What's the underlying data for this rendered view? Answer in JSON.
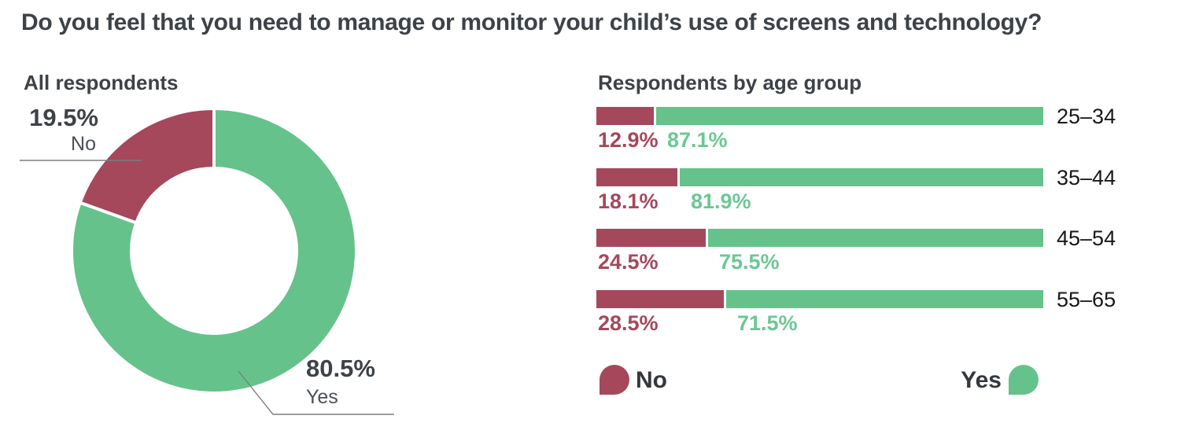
{
  "title": "Do you feel that you need to manage or monitor your child’s use of screens and technology?",
  "colors": {
    "no": "#a5485c",
    "yes": "#65c28b",
    "yes_text": "#6cc794",
    "heading_text": "#3d4247",
    "category_text": "#4b5055",
    "age_text": "#17181a",
    "legend_text": "#33383c",
    "leader_line": "#7d7d7d"
  },
  "donut_panel": {
    "heading": "All respondents",
    "no_value_label": "19.5%",
    "no_label": "No",
    "yes_value_label": "80.5%",
    "yes_label": "Yes"
  },
  "bars_panel": {
    "heading": "Respondents by age group",
    "rows": [
      {
        "age": "25–34",
        "no_label": "12.9%",
        "yes_label": "87.1%",
        "no": 12.9,
        "yes": 87.1
      },
      {
        "age": "35–44",
        "no_label": "18.1%",
        "yes_label": "81.9%",
        "no": 18.1,
        "yes": 81.9
      },
      {
        "age": "45–54",
        "no_label": "24.5%",
        "yes_label": "75.5%",
        "no": 24.5,
        "yes": 75.5
      },
      {
        "age": "55–65",
        "no_label": "28.5%",
        "yes_label": "71.5%",
        "no": 28.5,
        "yes": 71.5
      }
    ]
  },
  "legend": {
    "no_label": "No",
    "yes_label": "Yes"
  },
  "chart_data": [
    {
      "type": "pie",
      "donut": true,
      "title": "All respondents",
      "start": "12 o'clock",
      "direction": "clockwise",
      "segments": [
        {
          "label": "Yes",
          "value": 80.5,
          "color": "#65c28b"
        },
        {
          "label": "No",
          "value": 19.5,
          "color": "#a5485c"
        }
      ]
    },
    {
      "type": "bar",
      "orientation": "horizontal",
      "stacked": true,
      "title": "Respondents by age group",
      "categories": [
        "25–34",
        "35–44",
        "45–54",
        "55–65"
      ],
      "series": [
        {
          "name": "No",
          "color": "#a5485c",
          "values": [
            12.9,
            18.1,
            24.5,
            28.5
          ]
        },
        {
          "name": "Yes",
          "color": "#65c28b",
          "values": [
            87.1,
            81.9,
            75.5,
            71.5
          ]
        }
      ],
      "value_suffix": "%",
      "xlim": [
        0,
        100
      ],
      "legend_position": "bottom"
    }
  ]
}
